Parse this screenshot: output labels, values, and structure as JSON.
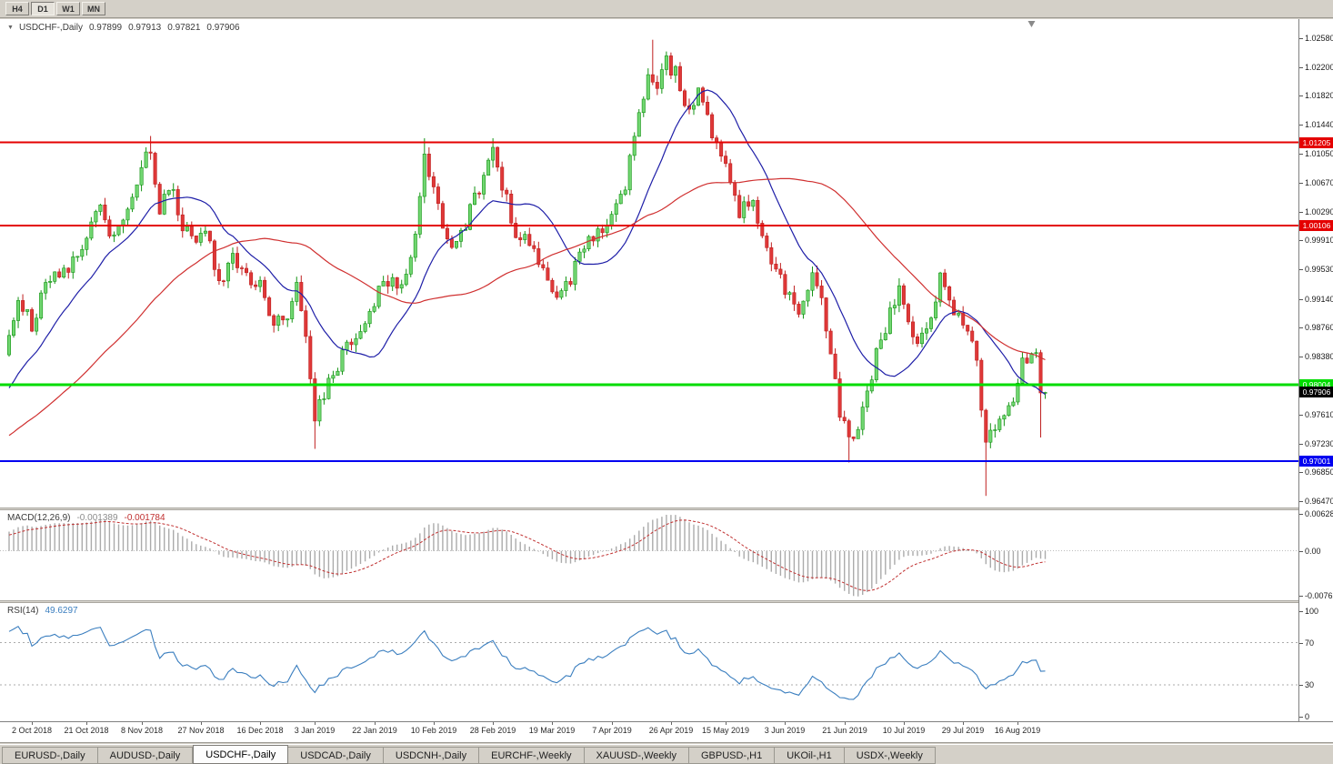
{
  "toolbar": {
    "timeframes": [
      {
        "label": "H4",
        "active": false
      },
      {
        "label": "D1",
        "active": true
      },
      {
        "label": "W1",
        "active": false
      },
      {
        "label": "MN",
        "active": false
      }
    ]
  },
  "chart": {
    "symbol_title": "USDCHF-,Daily",
    "ohlc": {
      "open": "0.97899",
      "high": "0.97913",
      "low": "0.97821",
      "close": "0.97906"
    },
    "price_axis_ticks": [
      {
        "label": "1.02580",
        "value": 1.0258
      },
      {
        "label": "1.02200",
        "value": 1.022
      },
      {
        "label": "1.01820",
        "value": 1.0182
      },
      {
        "label": "1.01440",
        "value": 1.0144
      },
      {
        "label": "1.01050",
        "value": 1.0105
      },
      {
        "label": "1.00670",
        "value": 1.0067
      },
      {
        "label": "1.00290",
        "value": 1.0029
      },
      {
        "label": "0.99910",
        "value": 0.9991
      },
      {
        "label": "0.99530",
        "value": 0.9953
      },
      {
        "label": "0.99140",
        "value": 0.9914
      },
      {
        "label": "0.98760",
        "value": 0.9876
      },
      {
        "label": "0.98380",
        "value": 0.9838
      },
      {
        "label": "0.97990",
        "value": 0.9799
      },
      {
        "label": "0.97610",
        "value": 0.9761
      },
      {
        "label": "0.97230",
        "value": 0.9723
      },
      {
        "label": "0.96850",
        "value": 0.9685
      },
      {
        "label": "0.96470",
        "value": 0.9647
      }
    ],
    "levels": [
      {
        "value": 1.01205,
        "label": "1.01205",
        "color": "#E40000",
        "width": 2,
        "text": "#FFFFFF"
      },
      {
        "value": 1.00106,
        "label": "1.00106",
        "color": "#E40000",
        "width": 2,
        "text": "#FFFFFF"
      },
      {
        "value": 0.98004,
        "label": "0.98004",
        "color": "#00DC00",
        "width": 3,
        "text": "#FFFFFF"
      },
      {
        "value": 0.97001,
        "label": "0.97001",
        "color": "#0000F0",
        "width": 2,
        "text": "#FFFFFF"
      }
    ],
    "current_price": {
      "value": 0.97906,
      "label": "0.97906",
      "bg": "#000000",
      "text": "#FFFFFF"
    },
    "date_axis": [
      {
        "label": "2 Oct 2018",
        "bar": 5
      },
      {
        "label": "21 Oct 2018",
        "bar": 17
      },
      {
        "label": "8 Nov 2018",
        "bar": 29
      },
      {
        "label": "27 Nov 2018",
        "bar": 42
      },
      {
        "label": "16 Dec 2018",
        "bar": 55
      },
      {
        "label": "3 Jan 2019",
        "bar": 67
      },
      {
        "label": "22 Jan 2019",
        "bar": 80
      },
      {
        "label": "10 Feb 2019",
        "bar": 93
      },
      {
        "label": "28 Feb 2019",
        "bar": 106
      },
      {
        "label": "19 Mar 2019",
        "bar": 119
      },
      {
        "label": "7 Apr 2019",
        "bar": 132
      },
      {
        "label": "26 Apr 2019",
        "bar": 145
      },
      {
        "label": "15 May 2019",
        "bar": 157
      },
      {
        "label": "3 Jun 2019",
        "bar": 170
      },
      {
        "label": "21 Jun 2019",
        "bar": 183
      },
      {
        "label": "10 Jul 2019",
        "bar": 196
      },
      {
        "label": "29 Jul 2019",
        "bar": 209
      },
      {
        "label": "16 Aug 2019",
        "bar": 221
      }
    ],
    "series": {
      "bars_total": 228,
      "shift_marker_bar": 224,
      "seed": 9,
      "noise": 0.0011,
      "wick_noise": 0.001,
      "waypoints": [
        [
          -70,
          0.9628
        ],
        [
          -52,
          0.9663
        ],
        [
          -34,
          0.9696
        ],
        [
          -18,
          0.974
        ],
        [
          -6,
          0.9795
        ],
        [
          0,
          0.9858
        ],
        [
          2,
          0.9912
        ],
        [
          5,
          0.9882
        ],
        [
          9,
          0.994
        ],
        [
          13,
          0.9958
        ],
        [
          17,
          1.0
        ],
        [
          20,
          1.0038
        ],
        [
          23,
          0.9992
        ],
        [
          26,
          1.0028
        ],
        [
          29,
          1.0092
        ],
        [
          31,
          1.0108
        ],
        [
          33,
          1.0032
        ],
        [
          35,
          1.0068
        ],
        [
          38,
          1.0014
        ],
        [
          40,
          0.999
        ],
        [
          43,
          1.0004
        ],
        [
          46,
          0.9936
        ],
        [
          49,
          0.9968
        ],
        [
          52,
          0.995
        ],
        [
          55,
          0.9928
        ],
        [
          58,
          0.988
        ],
        [
          61,
          0.9892
        ],
        [
          63,
          0.9928
        ],
        [
          65,
          0.9868
        ],
        [
          67,
          0.9762
        ],
        [
          69,
          0.979
        ],
        [
          72,
          0.9828
        ],
        [
          75,
          0.9864
        ],
        [
          78,
          0.989
        ],
        [
          81,
          0.992
        ],
        [
          84,
          0.9948
        ],
        [
          86,
          0.9922
        ],
        [
          88,
          0.9962
        ],
        [
          91,
          1.0102
        ],
        [
          93,
          1.0058
        ],
        [
          95,
          1.0012
        ],
        [
          98,
          0.998
        ],
        [
          101,
          1.003
        ],
        [
          104,
          1.0078
        ],
        [
          106,
          1.0112
        ],
        [
          108,
          1.0068
        ],
        [
          111,
          1.0002
        ],
        [
          114,
          0.9988
        ],
        [
          117,
          0.9954
        ],
        [
          120,
          0.9922
        ],
        [
          123,
          0.994
        ],
        [
          126,
          0.9984
        ],
        [
          129,
          1.0004
        ],
        [
          132,
          1.0024
        ],
        [
          135,
          1.0068
        ],
        [
          138,
          1.0158
        ],
        [
          140,
          1.0212
        ],
        [
          142,
          1.0188
        ],
        [
          144,
          1.0228
        ],
        [
          146,
          1.0212
        ],
        [
          148,
          1.017
        ],
        [
          151,
          1.0184
        ],
        [
          154,
          1.0128
        ],
        [
          157,
          1.0088
        ],
        [
          160,
          1.0028
        ],
        [
          163,
          1.0044
        ],
        [
          166,
          0.9978
        ],
        [
          169,
          0.9938
        ],
        [
          171,
          0.9914
        ],
        [
          173,
          0.9888
        ],
        [
          176,
          0.9952
        ],
        [
          178,
          0.9918
        ],
        [
          180,
          0.9838
        ],
        [
          182,
          0.9768
        ],
        [
          184,
          0.9728
        ],
        [
          186,
          0.9744
        ],
        [
          188,
          0.9788
        ],
        [
          190,
          0.9844
        ],
        [
          193,
          0.9894
        ],
        [
          195,
          0.9928
        ],
        [
          197,
          0.9878
        ],
        [
          199,
          0.9854
        ],
        [
          201,
          0.9878
        ],
        [
          204,
          0.9938
        ],
        [
          206,
          0.9908
        ],
        [
          208,
          0.9888
        ],
        [
          210,
          0.9878
        ],
        [
          212,
          0.9838
        ],
        [
          213,
          0.9758
        ],
        [
          214,
          0.9718
        ],
        [
          216,
          0.9742
        ],
        [
          218,
          0.9762
        ],
        [
          220,
          0.9788
        ],
        [
          222,
          0.9828
        ],
        [
          224,
          0.9846
        ],
        [
          225,
          0.9848
        ],
        [
          226,
          0.979
        ],
        [
          227,
          0.9791
        ]
      ],
      "wicks": [
        {
          "bar": 31,
          "high": 1.0129
        },
        {
          "bar": 67,
          "low": 0.9716
        },
        {
          "bar": 91,
          "high": 1.0126
        },
        {
          "bar": 106,
          "high": 1.0126
        },
        {
          "bar": 141,
          "high": 1.0256
        },
        {
          "bar": 184,
          "low": 0.9698
        },
        {
          "bar": 214,
          "low": 0.9654
        },
        {
          "bar": 226,
          "low": 0.9731
        },
        {
          "bar": 227,
          "high": 0.97913,
          "low": 0.97821
        }
      ],
      "close_overrides": {
        "226": 0.97899,
        "227": 0.97906
      }
    },
    "moving_averages": [
      {
        "period": 16,
        "color": "#1F1FA8"
      },
      {
        "period": 50,
        "color": "#D03030"
      }
    ],
    "colors": {
      "up_fill": "#71D671",
      "up_stroke": "#149314",
      "down_fill": "#DF3838",
      "down_stroke": "#BF1F1F",
      "macd_hist": "#ABABAB",
      "macd_signal": "#C03030",
      "rsi_line": "#3A7EBF"
    }
  },
  "indicators": {
    "macd": {
      "name": "MACD(12,26,9)",
      "value_main": "-0.001389",
      "value_signal": "-0.001784",
      "fast": 12,
      "slow": 26,
      "signal": 9,
      "axis_ticks": [
        {
          "label": "0.006286",
          "value": 0.006286
        },
        {
          "label": "0.00",
          "value": 0
        },
        {
          "label": "-0.00762",
          "value": -0.00762
        }
      ]
    },
    "rsi": {
      "name": "RSI(14)",
      "value": "49.6297",
      "period": 14,
      "levels": [
        70,
        30
      ],
      "axis_ticks": [
        {
          "label": "100",
          "value": 100
        },
        {
          "label": "70",
          "value": 70
        },
        {
          "label": "30",
          "value": 30
        },
        {
          "label": "0",
          "value": 0
        }
      ]
    }
  },
  "tabs": [
    {
      "label": "EURUSD-,Daily",
      "active": false
    },
    {
      "label": "AUDUSD-,Daily",
      "active": false
    },
    {
      "label": "USDCHF-,Daily",
      "active": true
    },
    {
      "label": "USDCAD-,Daily",
      "active": false
    },
    {
      "label": "USDCNH-,Daily",
      "active": false
    },
    {
      "label": "EURCHF-,Weekly",
      "active": false
    },
    {
      "label": "XAUUSD-,Weekly",
      "active": false
    },
    {
      "label": "GBPUSD-,H1",
      "active": false
    },
    {
      "label": "UKOil-,H1",
      "active": false
    },
    {
      "label": "USDX-,Weekly",
      "active": false
    }
  ]
}
